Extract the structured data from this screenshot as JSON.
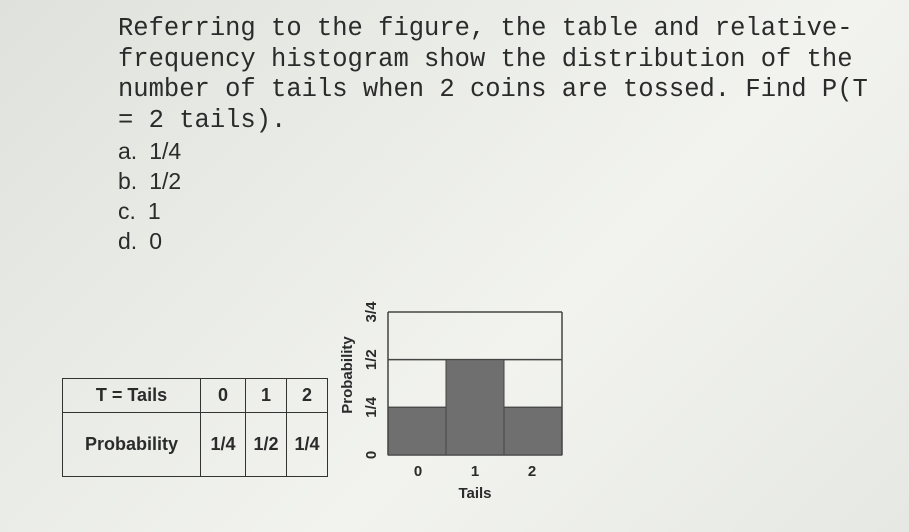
{
  "question": "Referring to the figure, the table and relative-frequency histogram show the distribution of the number of tails when 2 coins are tossed. Find P(T = 2 tails).",
  "options": [
    {
      "letter": "a.",
      "text": "1/4"
    },
    {
      "letter": "b.",
      "text": "1/2"
    },
    {
      "letter": "c.",
      "text": "1"
    },
    {
      "letter": "d.",
      "text": "0"
    }
  ],
  "table": {
    "rows": [
      [
        "T = Tails",
        "0",
        "1",
        "2"
      ],
      [
        "Probability",
        "1/4",
        "1/2",
        "1/4"
      ]
    ]
  },
  "chart_data": {
    "type": "histogram",
    "x_label": "Tails",
    "y_label": "Probability",
    "categories": [
      "0",
      "1",
      "2"
    ],
    "values": [
      0.25,
      0.5,
      0.25
    ],
    "color": "#6f6f6f",
    "ylim": [
      0,
      0.75
    ],
    "yticks": [
      0,
      {
        "value": 0.25,
        "label": "1/4"
      },
      {
        "value": 0.5,
        "label": "1/2"
      },
      {
        "value": 0.75,
        "label": "3/4"
      }
    ],
    "grid": true
  }
}
